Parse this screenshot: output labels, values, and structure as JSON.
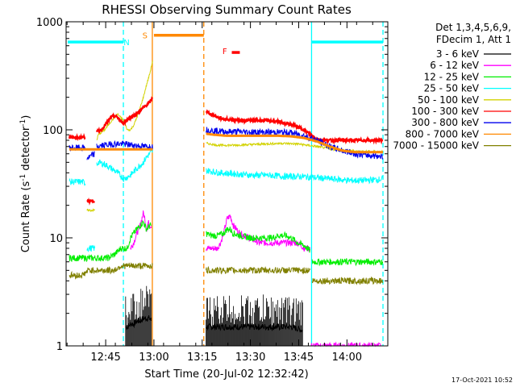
{
  "chart_data": {
    "type": "line",
    "title": "RHESSI Observing Summary Count Rates",
    "xlabel": "Start Time (20-Jul-02 12:32:42)",
    "ylabel": "Count Rate (s",
    "ylabel_sup1": "-1",
    "ylabel_mid": " detector",
    "ylabel_sup2": "-1",
    "ylabel_end": ")",
    "yscale": "log",
    "ylim": [
      1,
      1000
    ],
    "xlim_minutes": [
      0,
      100
    ],
    "x_start": "12:32:42",
    "x_ticks": [
      {
        "t": 12.3,
        "label": "12:45"
      },
      {
        "t": 27.3,
        "label": "13:00"
      },
      {
        "t": 42.3,
        "label": "13:15"
      },
      {
        "t": 57.3,
        "label": "13:30"
      },
      {
        "t": 72.3,
        "label": "13:45"
      },
      {
        "t": 87.3,
        "label": "14:00"
      }
    ],
    "y_ticks": [
      {
        "v": 1,
        "label": "1"
      },
      {
        "v": 10,
        "label": "10"
      },
      {
        "v": 100,
        "label": "100"
      },
      {
        "v": 1000,
        "label": "1000"
      }
    ],
    "legend": {
      "header": [
        "Det 1,3,4,5,6,9,",
        "FDecim 1, Att 1"
      ],
      "placement": "right"
    },
    "series": [
      {
        "name": "3 - 6 keV",
        "color": "#000000",
        "style": "noisy",
        "segments": [
          {
            "t": [
              18.5,
              19,
              20,
              21,
              22,
              23,
              24,
              25,
              26,
              26.5
            ],
            "v": [
              1.5,
              1.5,
              1.6,
              1.6,
              1.7,
              1.7,
              1.8,
              1.8,
              1.8,
              1.7
            ]
          },
          {
            "t": [
              43.5,
              46,
              50,
              54,
              58,
              62,
              66,
              70,
              73.5
            ],
            "v": [
              1.5,
              1.5,
              1.5,
              1.5,
              1.5,
              1.5,
              1.5,
              1.5,
              1.4
            ]
          }
        ]
      },
      {
        "name": "6 - 12 keV",
        "color": "#ff00ff",
        "style": "noisy",
        "segments": [
          {
            "t": [
              20,
              21,
              22,
              23,
              24,
              24.5,
              25,
              25.5,
              26,
              26.5
            ],
            "v": [
              8,
              9,
              11,
              13,
              17,
              15,
              12,
              14,
              13,
              13
            ]
          },
          {
            "t": [
              43.5,
              45,
              47,
              48,
              49,
              50,
              51,
              52,
              54,
              57,
              60,
              62,
              64,
              66,
              68,
              70,
              72,
              74,
              76
            ],
            "v": [
              8,
              8,
              8,
              9,
              11,
              15,
              16,
              13,
              11,
              10,
              9,
              9,
              9,
              9,
              9,
              9,
              9,
              8,
              8
            ]
          },
          {
            "t": [
              76.2,
              76.3,
              98
            ],
            "v": [
              1,
              1,
              1
            ]
          }
        ]
      },
      {
        "name": "12 - 25 keV",
        "color": "#00ee00",
        "style": "noisy",
        "segments": [
          {
            "t": [
              1,
              3,
              5,
              7,
              9,
              11,
              13,
              15,
              17,
              19,
              20,
              21,
              22,
              23,
              24,
              25,
              26,
              26.5
            ],
            "v": [
              6.5,
              6.5,
              6.5,
              6.5,
              6.5,
              6.5,
              6.5,
              7,
              8,
              8,
              10,
              11,
              12,
              13,
              14,
              12,
              13,
              13
            ]
          },
          {
            "t": [
              43.5,
              45,
              47,
              49,
              50,
              51,
              52,
              54,
              57,
              60,
              62,
              64,
              66,
              68,
              70,
              72,
              74,
              75,
              76
            ],
            "v": [
              11,
              10.5,
              10.5,
              11,
              12,
              12,
              11,
              10.5,
              10,
              10,
              10,
              10,
              10.5,
              10.5,
              10,
              9,
              8.5,
              8,
              7.5
            ]
          },
          {
            "t": [
              76.5,
              80,
              84,
              88,
              92,
              96,
              98.5
            ],
            "v": [
              6,
              6,
              6,
              6,
              6,
              6,
              6
            ]
          }
        ]
      },
      {
        "name": "25 - 50 keV",
        "color": "#00ffff",
        "style": "noisy",
        "segments": [
          {
            "t": [
              1,
              3,
              5,
              6
            ],
            "v": [
              33,
              33,
              33,
              32
            ]
          },
          {
            "t": [
              6.5,
              7,
              8,
              9
            ],
            "v": [
              8,
              8,
              8,
              8
            ]
          },
          {
            "t": [
              9.5,
              10,
              12,
              14,
              16,
              18,
              20,
              22,
              24,
              25,
              26,
              27
            ],
            "v": [
              48,
              50,
              48,
              44,
              40,
              35,
              38,
              44,
              50,
              56,
              60,
              64
            ]
          },
          {
            "t": [
              43.5,
              48,
              53,
              58,
              63,
              68,
              73,
              78,
              83,
              88,
              93,
              98.5
            ],
            "v": [
              42,
              40,
              39,
              38,
              38,
              37,
              37,
              36,
              35,
              34,
              34,
              35
            ]
          }
        ]
      },
      {
        "name": "50 - 100 keV",
        "color": "#d2d200",
        "style": "smooth",
        "segments": [
          {
            "t": [
              6.5,
              7,
              8,
              9
            ],
            "v": [
              18,
              18,
              18,
              18
            ]
          },
          {
            "t": [
              9.5,
              10,
              12,
              14,
              16,
              18,
              19,
              20,
              21,
              22,
              23,
              24,
              25,
              26,
              27
            ],
            "v": [
              80,
              90,
              100,
              120,
              140,
              120,
              100,
              100,
              110,
              130,
              160,
              200,
              260,
              330,
              450
            ]
          },
          {
            "t": [
              43.5,
              47,
              52,
              57,
              62,
              67,
              72,
              75,
              78,
              83,
              88,
              93,
              98.5
            ],
            "v": [
              75,
              72,
              72,
              73,
              74,
              75,
              74,
              72,
              70,
              66,
              64,
              63,
              63
            ]
          }
        ]
      },
      {
        "name": "100 - 300 keV",
        "color": "#ff0000",
        "style": "step",
        "segments": [
          {
            "t": [
              1,
              3,
              5,
              6
            ],
            "v": [
              85,
              85,
              85,
              85
            ]
          },
          {
            "t": [
              6.5,
              7,
              8,
              9
            ],
            "v": [
              22,
              22,
              22,
              22
            ]
          },
          {
            "t": [
              9.5,
              10,
              11,
              12,
              13,
              14,
              15,
              16,
              17,
              18,
              19,
              20,
              21,
              22,
              23,
              24,
              25,
              26,
              27
            ],
            "v": [
              95,
              98,
              100,
              110,
              120,
              130,
              135,
              130,
              120,
              115,
              125,
              130,
              135,
              140,
              150,
              160,
              170,
              180,
              200
            ]
          },
          {
            "t": [
              43.5,
              44,
              46,
              48,
              50,
              53,
              56,
              59,
              62,
              65,
              68,
              71,
              74,
              76,
              78,
              80,
              84,
              88,
              92,
              96,
              98.5
            ],
            "v": [
              150,
              145,
              135,
              128,
              125,
              123,
              122,
              122,
              122,
              120,
              115,
              110,
              100,
              90,
              82,
              80,
              80,
              80,
              80,
              80,
              80
            ]
          }
        ]
      },
      {
        "name": "300 - 800 keV",
        "color": "#0000ee",
        "style": "noisy",
        "segments": [
          {
            "t": [
              1,
              3,
              5,
              6
            ],
            "v": [
              68,
              68,
              68,
              68
            ]
          },
          {
            "t": [
              6.5,
              7,
              8,
              9
            ],
            "v": [
              55,
              55,
              58,
              60
            ]
          },
          {
            "t": [
              9.5,
              12,
              15,
              18,
              21,
              24,
              27
            ],
            "v": [
              70,
              72,
              74,
              74,
              72,
              70,
              70
            ]
          },
          {
            "t": [
              43.5,
              46,
              50,
              54,
              58,
              62,
              66,
              70,
              74,
              78,
              82,
              86,
              90,
              94,
              98.5
            ],
            "v": [
              100,
              98,
              96,
              96,
              95,
              95,
              95,
              94,
              88,
              80,
              70,
              64,
              60,
              58,
              57
            ]
          }
        ]
      },
      {
        "name": "50 - 100 keV",
        "color": "#d2d200",
        "legend_only": true
      },
      {
        "name": "800 - 7000 keV",
        "color": "#ff8800",
        "style": "thick",
        "segments": [
          {
            "t": [
              1,
              5,
              10,
              15,
              20,
              25,
              27
            ],
            "v": [
              66,
              66,
              66,
              66,
              66,
              66,
              66
            ]
          },
          {
            "t": [
              43.5,
              46,
              50,
              54,
              58,
              62,
              66,
              70,
              74,
              78,
              82,
              86,
              90,
              94,
              98.5
            ],
            "v": [
              92,
              90,
              88,
              88,
              88,
              88,
              88,
              87,
              84,
              78,
              70,
              64,
              62,
              62,
              62
            ]
          }
        ]
      },
      {
        "name": "7000 - 15000 keV",
        "color": "#808000",
        "style": "noisy",
        "segments": [
          {
            "t": [
              1,
              3,
              5,
              7,
              9,
              11,
              13,
              15,
              17,
              19,
              21,
              23,
              25,
              27
            ],
            "v": [
              4.5,
              4.5,
              4.5,
              5,
              5,
              5,
              5,
              5,
              5.5,
              5.5,
              5.5,
              5.5,
              5.5,
              5.5
            ]
          },
          {
            "t": [
              43.5,
              46,
              50,
              54,
              58,
              62,
              66,
              70,
              74,
              76
            ],
            "v": [
              5,
              5,
              5,
              5,
              5,
              5,
              5,
              5,
              5,
              5
            ]
          },
          {
            "t": [
              76.5,
              80,
              84,
              88,
              92,
              96,
              98.5
            ],
            "v": [
              4,
              4,
              4,
              4,
              4,
              4,
              4
            ]
          }
        ]
      }
    ],
    "legend_entries": [
      {
        "name": "3 - 6 keV",
        "color": "#000000"
      },
      {
        "name": "6 - 12 keV",
        "color": "#ff00ff"
      },
      {
        "name": "12 - 25 keV",
        "color": "#00ee00"
      },
      {
        "name": "25 - 50 keV",
        "color": "#00ffff"
      },
      {
        "name": "50 - 100 keV",
        "color": "#d2d200"
      },
      {
        "name": "100 - 300 keV",
        "color": "#ff0000"
      },
      {
        "name": "300 - 800 keV",
        "color": "#0000ee"
      },
      {
        "name": "800 - 7000 keV",
        "color": "#ff8800"
      },
      {
        "name": "7000 - 15000 keV",
        "color": "#808000"
      }
    ],
    "vertical_markers": [
      {
        "t": 17.8,
        "color": "#00ffff",
        "style": "dashed"
      },
      {
        "t": 26.8,
        "color": "#ff8800",
        "style": "solid"
      },
      {
        "t": 42.8,
        "color": "#ff8800",
        "style": "dashed"
      },
      {
        "t": 76.3,
        "color": "#00ffff",
        "style": "solid"
      },
      {
        "t": 98.5,
        "color": "#00ffff",
        "style": "dashed"
      }
    ],
    "flag_bars": [
      {
        "label": "N",
        "color": "#00ffff",
        "t0": 0.5,
        "t1": 17.8,
        "v": 650,
        "label_t": 18.8,
        "label_v": 650
      },
      {
        "label": "S",
        "color": "#ff8800",
        "t0": 27.3,
        "t1": 42.8,
        "v": 750,
        "label_t": 24.5,
        "label_v": 750
      },
      {
        "label": "F",
        "color": "#ff0000",
        "t0": 51.5,
        "t1": 54.0,
        "v": 520,
        "label_t": 49.3,
        "label_v": 540
      },
      {
        "label": "",
        "color": "#00ffff",
        "t0": 76.3,
        "t1": 98.5,
        "v": 650,
        "label_t": 0,
        "label_v": 0
      }
    ]
  },
  "footer": {
    "date": "17-Oct-2021 10:52"
  }
}
